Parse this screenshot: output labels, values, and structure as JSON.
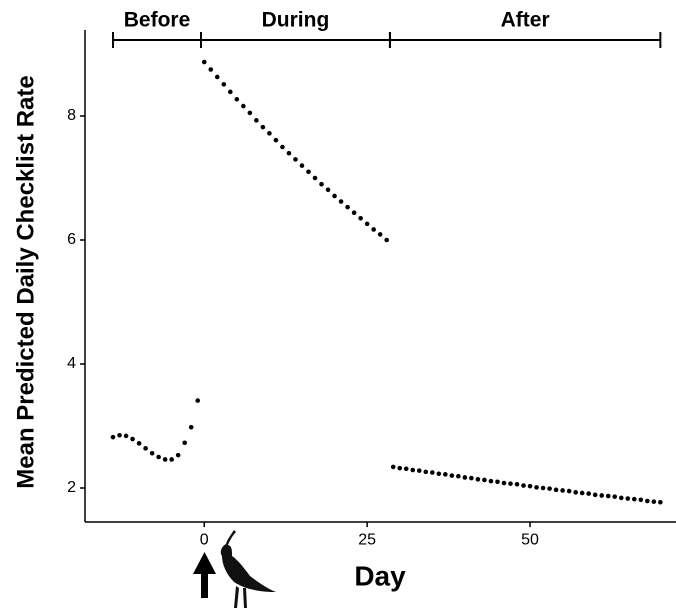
{
  "chart_data": {
    "type": "scatter",
    "xlabel": "Day",
    "ylabel": "Mean Predicted Daily Checklist Rate",
    "xlim": [
      -18.3,
      72.4
    ],
    "xticks": [
      0,
      25,
      50
    ],
    "ylim": [
      1.45,
      9.4
    ],
    "yticks": [
      2,
      4,
      6,
      8
    ],
    "color": "#000000",
    "periods": [
      {
        "label": "Before",
        "start": -14,
        "end": -0.5
      },
      {
        "label": "During",
        "start": -0.5,
        "end": 28.5
      },
      {
        "label": "After",
        "start": 28.5,
        "end": 70
      }
    ],
    "series": [
      {
        "x": [
          -14,
          -13,
          -12,
          -11,
          -10,
          -9,
          -8,
          -7,
          -6,
          -5,
          -4,
          -3,
          -2,
          -1
        ],
        "values": [
          2.82,
          2.85,
          2.84,
          2.79,
          2.72,
          2.64,
          2.56,
          2.5,
          2.46,
          2.46,
          2.53,
          2.73,
          2.98,
          3.41
        ]
      },
      {
        "x": [
          0,
          1,
          2,
          3,
          4,
          5,
          6,
          7,
          8,
          9,
          10,
          11,
          12,
          13,
          14,
          15,
          16,
          17,
          18,
          19,
          20,
          21,
          22,
          23,
          24,
          25,
          26,
          27,
          28
        ],
        "values": [
          8.87,
          8.75,
          8.63,
          8.51,
          8.39,
          8.27,
          8.16,
          8.05,
          7.93,
          7.82,
          7.72,
          7.61,
          7.5,
          7.4,
          7.3,
          7.2,
          7.1,
          7.0,
          6.9,
          6.81,
          6.71,
          6.62,
          6.53,
          6.44,
          6.35,
          6.26,
          6.17,
          6.09,
          6.0
        ]
      },
      {
        "x": [
          29,
          30,
          31,
          32,
          33,
          34,
          35,
          36,
          37,
          38,
          39,
          40,
          41,
          42,
          43,
          44,
          45,
          46,
          47,
          48,
          49,
          50,
          51,
          52,
          53,
          54,
          55,
          56,
          57,
          58,
          59,
          60,
          61,
          62,
          63,
          64,
          65,
          66,
          67,
          68,
          69,
          70
        ],
        "values": [
          2.34,
          2.32,
          2.31,
          2.29,
          2.28,
          2.26,
          2.25,
          2.23,
          2.22,
          2.2,
          2.19,
          2.17,
          2.16,
          2.14,
          2.13,
          2.11,
          2.1,
          2.08,
          2.07,
          2.06,
          2.04,
          2.03,
          2.01,
          2.0,
          1.99,
          1.97,
          1.96,
          1.95,
          1.93,
          1.92,
          1.91,
          1.89,
          1.88,
          1.87,
          1.86,
          1.84,
          1.83,
          1.82,
          1.81,
          1.79,
          1.78,
          1.77
        ]
      }
    ]
  }
}
